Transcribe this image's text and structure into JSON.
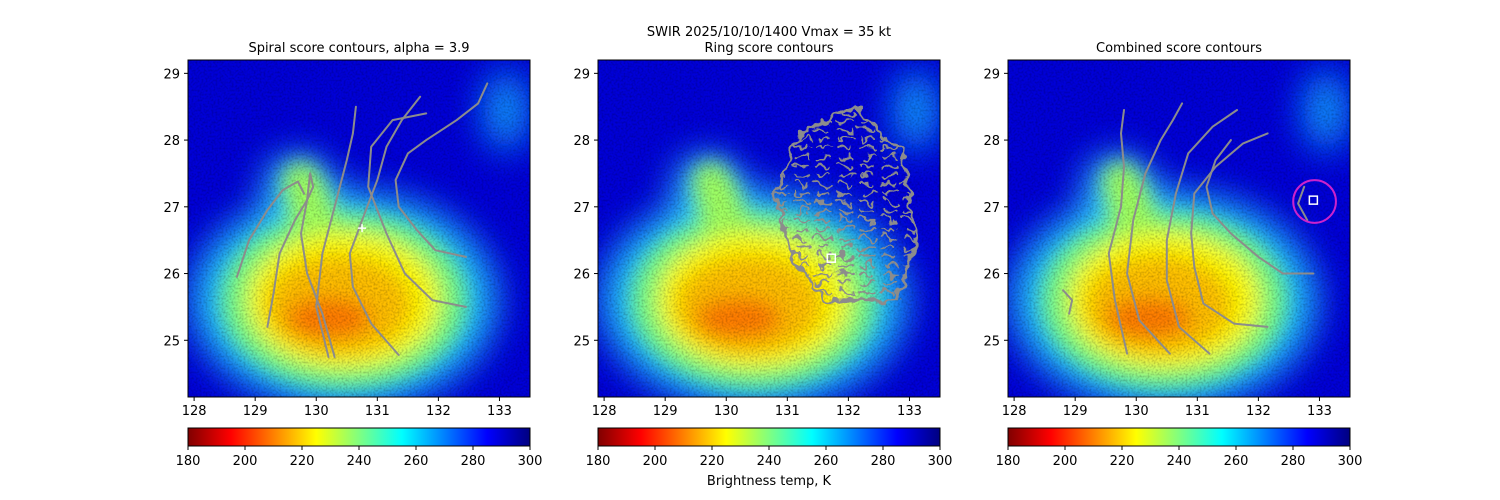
{
  "figure": {
    "suptitle": "SWIR  2025/10/10/1400    Vmax = 35 kt",
    "colorbar_label": "Brightness temp, K"
  },
  "colors": {
    "contour": "#8c8c8c",
    "marker": "#ffffff",
    "ring": "#cc22cc",
    "colormap": [
      "#800000",
      "#ff0000",
      "#ff8000",
      "#ffff00",
      "#80ff80",
      "#00ffff",
      "#0080ff",
      "#0000ff",
      "#000080"
    ]
  },
  "chart_data": [
    {
      "type": "heatmap",
      "title": "Spiral score contours, alpha =  3.9",
      "xlim": [
        127.9,
        133.5
      ],
      "ylim": [
        24.15,
        29.2
      ],
      "xticks": [
        "128",
        "129",
        "130",
        "131",
        "132",
        "133"
      ],
      "yticks": [
        "25",
        "26",
        "27",
        "28",
        "29"
      ],
      "colorbar": {
        "range": [
          180,
          300
        ],
        "ticks": [
          "180",
          "200",
          "220",
          "240",
          "260",
          "280",
          "300"
        ]
      },
      "field": {
        "core_center": [
          130.45,
          25.6
        ],
        "core_radius_x": 1.85,
        "core_radius_y": 1.25,
        "tail_top": [
          129.8,
          27.6
        ]
      },
      "center_marker": {
        "shape": "plus",
        "x": 130.75,
        "y": 26.68
      },
      "contours": [
        [
          [
            128.7,
            25.95
          ],
          [
            128.9,
            26.5
          ],
          [
            129.2,
            26.95
          ],
          [
            129.45,
            27.25
          ],
          [
            129.7,
            27.38
          ],
          [
            129.8,
            27.2
          ]
        ],
        [
          [
            129.2,
            25.2
          ],
          [
            129.3,
            25.7
          ],
          [
            129.4,
            26.3
          ],
          [
            129.65,
            26.8
          ],
          [
            129.85,
            27.1
          ],
          [
            129.95,
            27.3
          ],
          [
            129.9,
            27.5
          ]
        ],
        [
          [
            130.3,
            24.75
          ],
          [
            130.1,
            25.4
          ],
          [
            129.85,
            26.0
          ],
          [
            129.75,
            26.6
          ],
          [
            129.85,
            27.1
          ],
          [
            129.9,
            27.5
          ]
        ],
        [
          [
            130.2,
            24.75
          ],
          [
            130.0,
            25.5
          ],
          [
            130.1,
            26.3
          ],
          [
            130.3,
            27.0
          ],
          [
            130.5,
            27.7
          ],
          [
            130.6,
            28.1
          ],
          [
            130.65,
            28.5
          ]
        ],
        [
          [
            131.35,
            24.78
          ],
          [
            130.9,
            25.25
          ],
          [
            130.6,
            25.8
          ],
          [
            130.55,
            26.3
          ],
          [
            130.75,
            26.8
          ],
          [
            131.0,
            27.4
          ],
          [
            131.15,
            27.9
          ],
          [
            131.4,
            28.3
          ],
          [
            131.7,
            28.65
          ]
        ],
        [
          [
            132.45,
            25.5
          ],
          [
            131.9,
            25.6
          ],
          [
            131.45,
            26.0
          ],
          [
            131.15,
            26.6
          ],
          [
            130.85,
            27.3
          ],
          [
            130.9,
            27.9
          ],
          [
            131.25,
            28.3
          ],
          [
            131.8,
            28.4
          ]
        ],
        [
          [
            132.45,
            26.25
          ],
          [
            131.95,
            26.35
          ],
          [
            131.65,
            26.65
          ],
          [
            131.35,
            27.0
          ],
          [
            131.3,
            27.4
          ],
          [
            131.5,
            27.8
          ],
          [
            131.8,
            28.0
          ],
          [
            132.3,
            28.3
          ],
          [
            132.65,
            28.55
          ],
          [
            132.8,
            28.85
          ]
        ]
      ]
    },
    {
      "type": "heatmap",
      "title": "Ring score contours",
      "xlim": [
        127.9,
        133.5
      ],
      "ylim": [
        24.15,
        29.2
      ],
      "xticks": [
        "128",
        "129",
        "130",
        "131",
        "132",
        "133"
      ],
      "yticks": [
        "25",
        "26",
        "27",
        "28",
        "29"
      ],
      "colorbar": {
        "range": [
          180,
          300
        ],
        "ticks": [
          "180",
          "200",
          "220",
          "240",
          "260",
          "280",
          "300"
        ]
      },
      "field": {
        "core_center": [
          130.45,
          25.6
        ],
        "core_radius_x": 1.85,
        "core_radius_y": 1.25,
        "tail_top": [
          129.8,
          27.6
        ]
      },
      "center_marker": {
        "shape": "square",
        "x": 131.72,
        "y": 26.23
      },
      "ring_region": {
        "center": [
          132.0,
          27.0
        ],
        "radius_x": 1.1,
        "radius_y": 1.45,
        "clip": [
          [
            132.1,
            28.5
          ],
          [
            132.9,
            27.8
          ],
          [
            133.1,
            26.5
          ],
          [
            132.8,
            25.6
          ],
          [
            131.6,
            25.6
          ],
          [
            131.1,
            26.2
          ],
          [
            130.8,
            27.2
          ],
          [
            131.2,
            28.1
          ]
        ]
      },
      "contours": []
    },
    {
      "type": "heatmap",
      "title": "Combined score contours",
      "xlim": [
        127.9,
        133.5
      ],
      "ylim": [
        24.15,
        29.2
      ],
      "xticks": [
        "128",
        "129",
        "130",
        "131",
        "132",
        "133"
      ],
      "yticks": [
        "25",
        "26",
        "27",
        "28",
        "29"
      ],
      "colorbar": {
        "range": [
          180,
          300
        ],
        "ticks": [
          "180",
          "200",
          "220",
          "240",
          "260",
          "280",
          "300"
        ]
      },
      "field": {
        "core_center": [
          130.45,
          25.6
        ],
        "core_radius_x": 1.85,
        "core_radius_y": 1.25,
        "tail_top": [
          129.8,
          27.6
        ]
      },
      "center_marker": {
        "shape": "square",
        "x": 132.9,
        "y": 27.1
      },
      "ring_marker": {
        "x": 132.92,
        "y": 27.08,
        "radius": 0.35
      },
      "contours": [
        [
          [
            128.9,
            25.4
          ],
          [
            128.95,
            25.6
          ],
          [
            128.8,
            25.75
          ]
        ],
        [
          [
            129.85,
            24.8
          ],
          [
            129.65,
            25.6
          ],
          [
            129.55,
            26.3
          ],
          [
            129.75,
            27.0
          ],
          [
            129.8,
            27.6
          ],
          [
            129.75,
            28.1
          ],
          [
            129.8,
            28.45
          ]
        ],
        [
          [
            130.55,
            24.8
          ],
          [
            130.05,
            25.3
          ],
          [
            129.85,
            26.0
          ],
          [
            129.95,
            26.8
          ],
          [
            130.15,
            27.5
          ],
          [
            130.4,
            28.0
          ],
          [
            130.6,
            28.3
          ],
          [
            130.75,
            28.55
          ]
        ],
        [
          [
            131.2,
            24.8
          ],
          [
            130.7,
            25.2
          ],
          [
            130.5,
            25.9
          ],
          [
            130.5,
            26.5
          ],
          [
            130.65,
            27.2
          ],
          [
            130.85,
            27.8
          ],
          [
            131.25,
            28.2
          ],
          [
            131.65,
            28.45
          ]
        ],
        [
          [
            132.15,
            25.2
          ],
          [
            131.6,
            25.25
          ],
          [
            131.1,
            25.55
          ],
          [
            130.95,
            26.1
          ],
          [
            130.9,
            26.6
          ],
          [
            130.95,
            27.2
          ],
          [
            131.3,
            27.6
          ],
          [
            131.75,
            27.95
          ],
          [
            132.15,
            28.1
          ]
        ],
        [
          [
            132.9,
            26.0
          ],
          [
            132.4,
            26.0
          ],
          [
            132.0,
            26.25
          ],
          [
            131.55,
            26.6
          ],
          [
            131.25,
            26.9
          ],
          [
            131.15,
            27.3
          ],
          [
            131.3,
            27.7
          ],
          [
            131.55,
            28.0
          ]
        ],
        [
          [
            132.8,
            26.8
          ],
          [
            132.65,
            27.05
          ],
          [
            132.75,
            27.3
          ]
        ]
      ]
    }
  ]
}
